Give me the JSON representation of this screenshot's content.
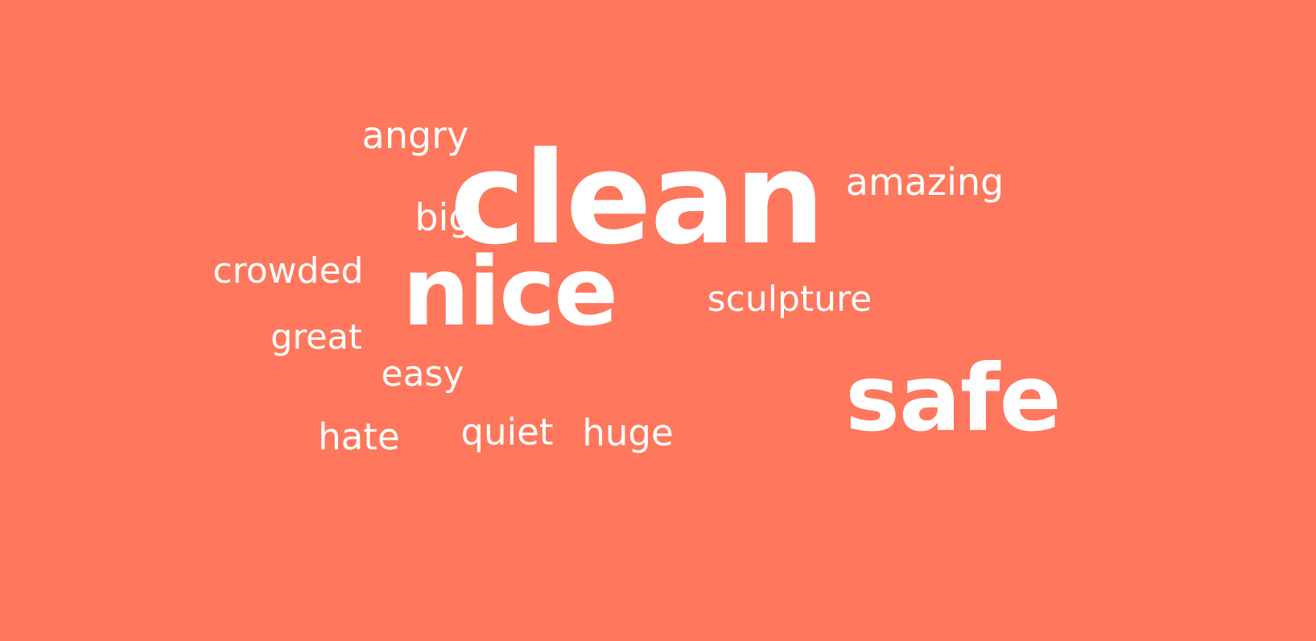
{
  "background_color": "#ff775c",
  "text_color": "#ffffff",
  "words": [
    {
      "text": "clean",
      "size_rank": 1
    },
    {
      "text": "nice",
      "size_rank": 2
    },
    {
      "text": "safe",
      "size_rank": 2
    },
    {
      "text": "angry",
      "size_rank": 3
    },
    {
      "text": "amazing",
      "size_rank": 3
    },
    {
      "text": "big",
      "size_rank": 3
    },
    {
      "text": "crowded",
      "size_rank": 3
    },
    {
      "text": "sculpture",
      "size_rank": 3
    },
    {
      "text": "great",
      "size_rank": 3
    },
    {
      "text": "easy",
      "size_rank": 3
    },
    {
      "text": "hate",
      "size_rank": 3
    },
    {
      "text": "quiet",
      "size_rank": 3
    },
    {
      "text": "huge",
      "size_rank": 3
    }
  ]
}
